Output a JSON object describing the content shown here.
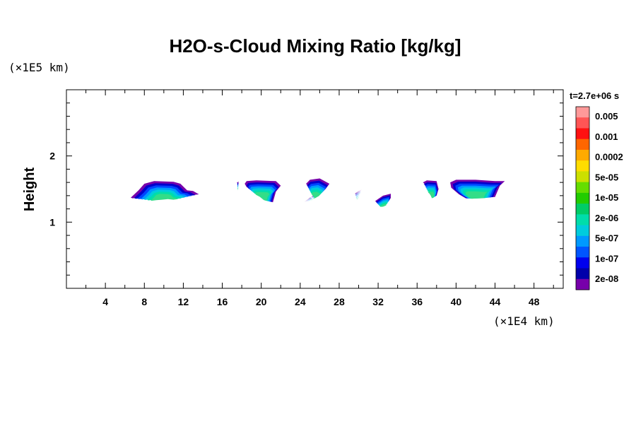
{
  "chart_data": {
    "type": "heatmap",
    "title": "H2O-s-Cloud Mixing Ratio [kg/kg]",
    "ylabel": "Height",
    "xlabel": "",
    "x_unit": "(×1E4 km)",
    "y_unit": "(×1E5 km)",
    "time_label": "t=2.7e+06 s",
    "xlim": [
      0,
      51
    ],
    "ylim": [
      0,
      3
    ],
    "x_ticks": [
      4,
      8,
      12,
      16,
      20,
      24,
      28,
      32,
      36,
      40,
      44,
      48
    ],
    "y_ticks": [
      1,
      2
    ],
    "x_minor_step": 2,
    "y_minor_step": 0.2,
    "colorbar": {
      "labels": [
        "0.005",
        "0.001",
        "0.0002",
        "5e-05",
        "1e-05",
        "2e-06",
        "5e-07",
        "1e-07",
        "2e-08"
      ],
      "colors_top_to_bottom": [
        "#ff9999",
        "#ff5555",
        "#ff1111",
        "#ff6600",
        "#ffaa00",
        "#ffdd00",
        "#cce000",
        "#66dd00",
        "#22cc00",
        "#00cc66",
        "#00ddaa",
        "#00ccdd",
        "#0099ff",
        "#0055ff",
        "#0000ee",
        "#0000aa",
        "#7700aa"
      ]
    },
    "clouds": [
      {
        "name": "cloud-1",
        "x": [
          6.6,
          7.4,
          8.0,
          9.0,
          11.0,
          11.7,
          12.4,
          13.0,
          13.6,
          12.4,
          11.0,
          9.5,
          8.0,
          6.8
        ],
        "y": [
          1.37,
          1.48,
          1.58,
          1.62,
          1.61,
          1.58,
          1.48,
          1.47,
          1.42,
          1.4,
          1.42,
          1.4,
          1.38,
          1.36
        ]
      },
      {
        "name": "cloud-2",
        "x": [
          18.3,
          18.5,
          19.5,
          21.5,
          22.0,
          21.5,
          21.2,
          20.5,
          19.5,
          18.5
        ],
        "y": [
          1.58,
          1.62,
          1.63,
          1.62,
          1.55,
          1.46,
          1.3,
          1.33,
          1.45,
          1.53
        ]
      },
      {
        "name": "cloud-3",
        "x": [
          24.6,
          25.0,
          26.0,
          27.0,
          26.6,
          25.8,
          25.0,
          24.4,
          25.5,
          25.0
        ],
        "y": [
          1.58,
          1.64,
          1.66,
          1.58,
          1.5,
          1.43,
          1.37,
          1.3,
          1.42,
          1.5
        ]
      },
      {
        "name": "cloud-4",
        "x": [
          29.6,
          30.3,
          30.0,
          29.7
        ],
        "y": [
          1.43,
          1.49,
          1.46,
          1.43
        ]
      },
      {
        "name": "cloud-5",
        "x": [
          31.7,
          32.5,
          33.3,
          33.3,
          32.5,
          31.8
        ],
        "y": [
          1.32,
          1.4,
          1.43,
          1.36,
          1.31,
          1.3
        ]
      },
      {
        "name": "cloud-6",
        "x": [
          36.6,
          37.0,
          38.0,
          38.2,
          38.0,
          37.6,
          37.3,
          37.0
        ],
        "y": [
          1.6,
          1.63,
          1.62,
          1.5,
          1.4,
          1.38,
          1.48,
          1.55
        ]
      },
      {
        "name": "cloud-7",
        "x": [
          39.4,
          40.0,
          42.0,
          44.0,
          45.0,
          44.5,
          44.0,
          42.5,
          41.0,
          40.3,
          39.5
        ],
        "y": [
          1.6,
          1.64,
          1.64,
          1.62,
          1.62,
          1.55,
          1.38,
          1.37,
          1.36,
          1.42,
          1.52
        ]
      },
      {
        "name": "cloud-dot",
        "x": [
          17.5,
          17.7,
          17.6
        ],
        "y": [
          1.6,
          1.61,
          1.58
        ]
      }
    ]
  }
}
